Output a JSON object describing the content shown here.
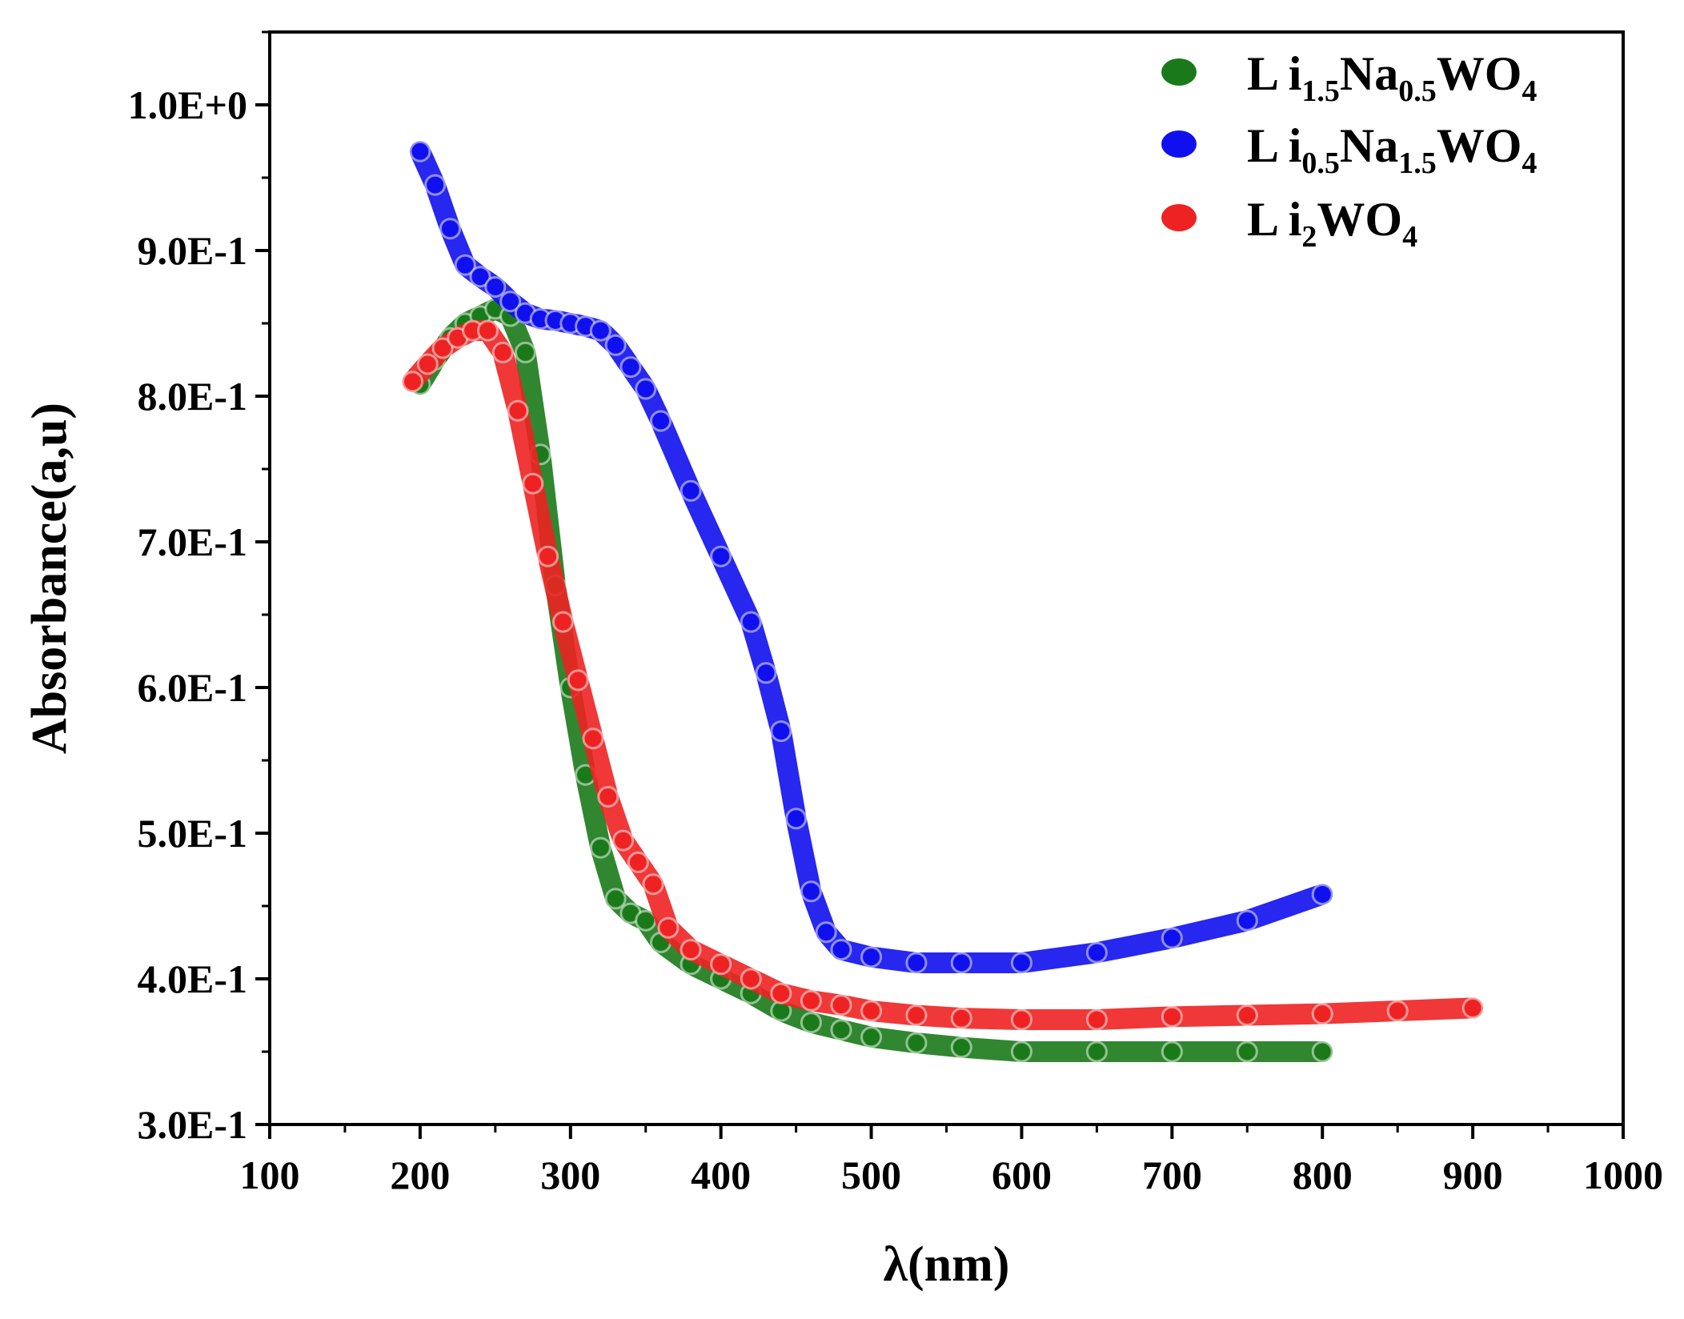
{
  "chart_data": {
    "type": "scatter",
    "title": "",
    "xlabel": "λ(nm)",
    "ylabel": "Absorbance(a,u)",
    "xlim": [
      100,
      1000
    ],
    "ylim": [
      0.3,
      1.05
    ],
    "x_ticks": [
      100,
      200,
      300,
      400,
      500,
      600,
      700,
      800,
      900,
      1000
    ],
    "x_tick_labels": [
      "100",
      "200",
      "300",
      "400",
      "500",
      "600",
      "700",
      "800",
      "900",
      "1000"
    ],
    "y_ticks": [
      0.3,
      0.4,
      0.5,
      0.6,
      0.7,
      0.8,
      0.9,
      1.0
    ],
    "y_tick_labels": [
      "3.0E-1",
      "4.0E-1",
      "5.0E-1",
      "6.0E-1",
      "7.0E-1",
      "8.0E-1",
      "9.0E-1",
      "1.0E+0"
    ],
    "grid": false,
    "legend_position": "top-right",
    "series": [
      {
        "name": "Li1.5Na0.5WO4",
        "legend_parts": [
          [
            "L i",
            ""
          ],
          [
            "1.5",
            "sub"
          ],
          [
            "Na",
            ""
          ],
          [
            "0.5",
            "sub"
          ],
          [
            "WO",
            ""
          ],
          [
            "4",
            "sub"
          ]
        ],
        "color": "#1a7a1a",
        "x": [
          200,
          210,
          220,
          230,
          240,
          250,
          260,
          270,
          280,
          290,
          300,
          310,
          320,
          330,
          340,
          350,
          360,
          380,
          400,
          420,
          440,
          460,
          480,
          500,
          530,
          560,
          600,
          650,
          700,
          750,
          800
        ],
        "y": [
          0.808,
          0.825,
          0.84,
          0.85,
          0.855,
          0.86,
          0.855,
          0.83,
          0.76,
          0.67,
          0.6,
          0.54,
          0.49,
          0.455,
          0.445,
          0.44,
          0.425,
          0.41,
          0.4,
          0.39,
          0.378,
          0.37,
          0.365,
          0.36,
          0.356,
          0.353,
          0.35,
          0.35,
          0.35,
          0.35,
          0.35
        ]
      },
      {
        "name": "Li0.5Na1.5WO4",
        "legend_parts": [
          [
            "L i",
            ""
          ],
          [
            "0.5",
            "sub"
          ],
          [
            "Na",
            ""
          ],
          [
            "1.5",
            "sub"
          ],
          [
            "WO",
            ""
          ],
          [
            "4",
            "sub"
          ]
        ],
        "color": "#1010ee",
        "x": [
          200,
          210,
          220,
          230,
          240,
          250,
          260,
          270,
          280,
          290,
          300,
          310,
          320,
          330,
          340,
          350,
          360,
          380,
          400,
          420,
          430,
          440,
          450,
          460,
          470,
          480,
          500,
          530,
          560,
          600,
          650,
          700,
          750,
          800
        ],
        "y": [
          0.968,
          0.945,
          0.915,
          0.89,
          0.882,
          0.875,
          0.865,
          0.857,
          0.853,
          0.852,
          0.85,
          0.848,
          0.845,
          0.835,
          0.82,
          0.805,
          0.783,
          0.735,
          0.69,
          0.645,
          0.61,
          0.57,
          0.51,
          0.46,
          0.432,
          0.42,
          0.415,
          0.411,
          0.411,
          0.411,
          0.418,
          0.428,
          0.44,
          0.458
        ]
      },
      {
        "name": "Li2WO4",
        "legend_parts": [
          [
            "L i",
            ""
          ],
          [
            "2",
            "sub"
          ],
          [
            "WO",
            ""
          ],
          [
            "4",
            "sub"
          ]
        ],
        "color": "#ee2222",
        "x": [
          195,
          205,
          215,
          225,
          235,
          245,
          255,
          265,
          275,
          285,
          295,
          305,
          315,
          325,
          335,
          345,
          355,
          365,
          380,
          400,
          420,
          440,
          460,
          480,
          500,
          530,
          560,
          600,
          650,
          700,
          750,
          800,
          850,
          900
        ],
        "y": [
          0.81,
          0.822,
          0.833,
          0.84,
          0.845,
          0.845,
          0.83,
          0.79,
          0.74,
          0.69,
          0.645,
          0.605,
          0.565,
          0.525,
          0.495,
          0.48,
          0.465,
          0.435,
          0.42,
          0.41,
          0.4,
          0.39,
          0.385,
          0.382,
          0.378,
          0.375,
          0.373,
          0.372,
          0.372,
          0.374,
          0.375,
          0.376,
          0.378,
          0.38
        ]
      }
    ]
  }
}
